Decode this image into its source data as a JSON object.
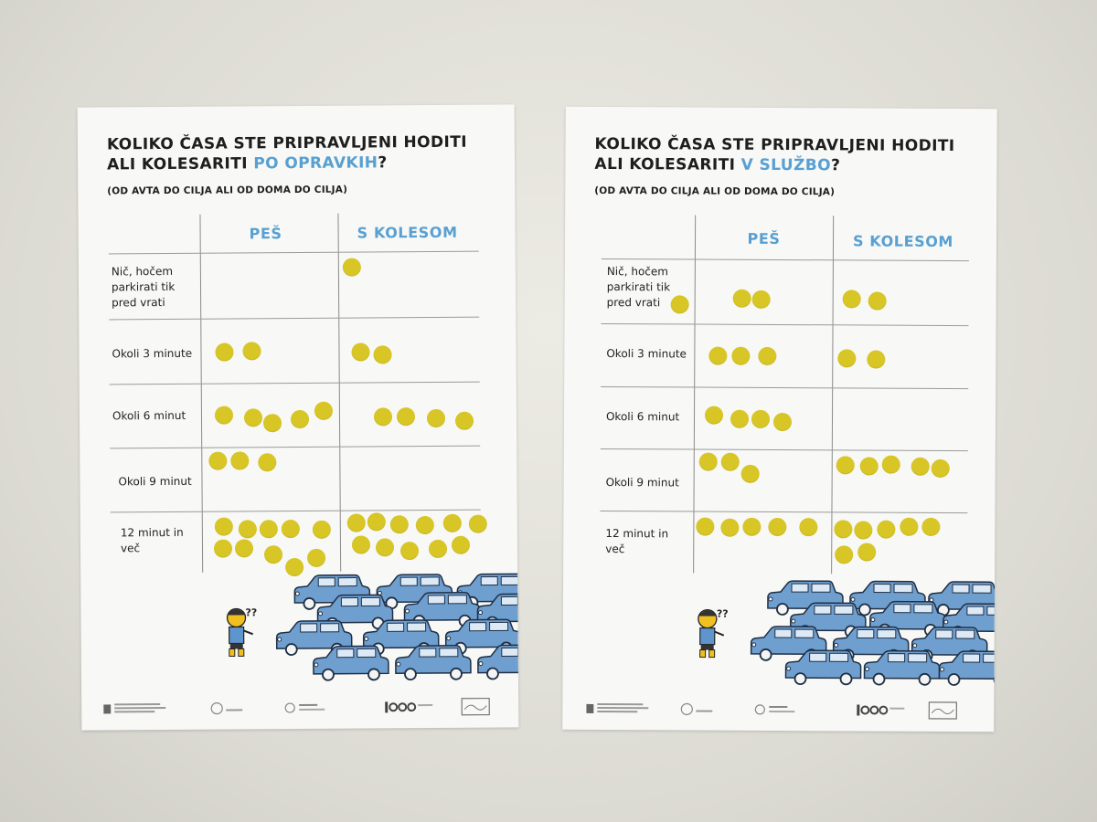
{
  "posters": [
    {
      "title_line1": "KOLIKO ČASA STE PRIPRAVLJENI HODITI",
      "title_line2_prefix": "ALI KOLESARITI",
      "title_highlight": "PO OPRAVKIH",
      "title_suffix": "?",
      "subtitle": "(OD AVTA DO CILJA ALI OD DOMA DO CILJA)",
      "col_walk": "PEŠ",
      "col_bike": "S KOLESOM",
      "rows": [
        {
          "label": "Nič, hočem parkirati tik pred vrati",
          "walk_dots": 0,
          "bike_dots": 1
        },
        {
          "label": "Okoli 3 minute",
          "walk_dots": 2,
          "bike_dots": 2
        },
        {
          "label": "Okoli 6 minut",
          "walk_dots": 5,
          "bike_dots": 4
        },
        {
          "label": "Okoli 9 minut",
          "walk_dots": 3,
          "bike_dots": 0
        },
        {
          "label": "12 minut in več",
          "walk_dots": 11,
          "bike_dots": 11
        }
      ]
    },
    {
      "title_line1": "KOLIKO ČASA STE PRIPRAVLJENI HODITI",
      "title_line2_prefix": "ALI KOLESARITI",
      "title_highlight": "V SLUŽBO",
      "title_suffix": "?",
      "subtitle": "(OD AVTA DO CILJA ALI OD DOMA DO CILJA)",
      "col_walk": "PEŠ",
      "col_bike": "S KOLESOM",
      "rows": [
        {
          "label": "Nič, hočem parkirati tik pred vrati",
          "walk_dots": 3,
          "bike_dots": 2
        },
        {
          "label": "Okoli 3 minute",
          "walk_dots": 3,
          "bike_dots": 2
        },
        {
          "label": "Okoli 6 minut",
          "walk_dots": 4,
          "bike_dots": 0
        },
        {
          "label": "Okoli 9 minut",
          "walk_dots": 3,
          "bike_dots": 5
        },
        {
          "label": "12 minut in več",
          "walk_dots": 5,
          "bike_dots": 7
        }
      ]
    }
  ],
  "illustration": {
    "question_marks": "??",
    "car_color": "#6f9fcf",
    "dot_color": "#d8c626",
    "accent_color": "#58a0d2"
  }
}
